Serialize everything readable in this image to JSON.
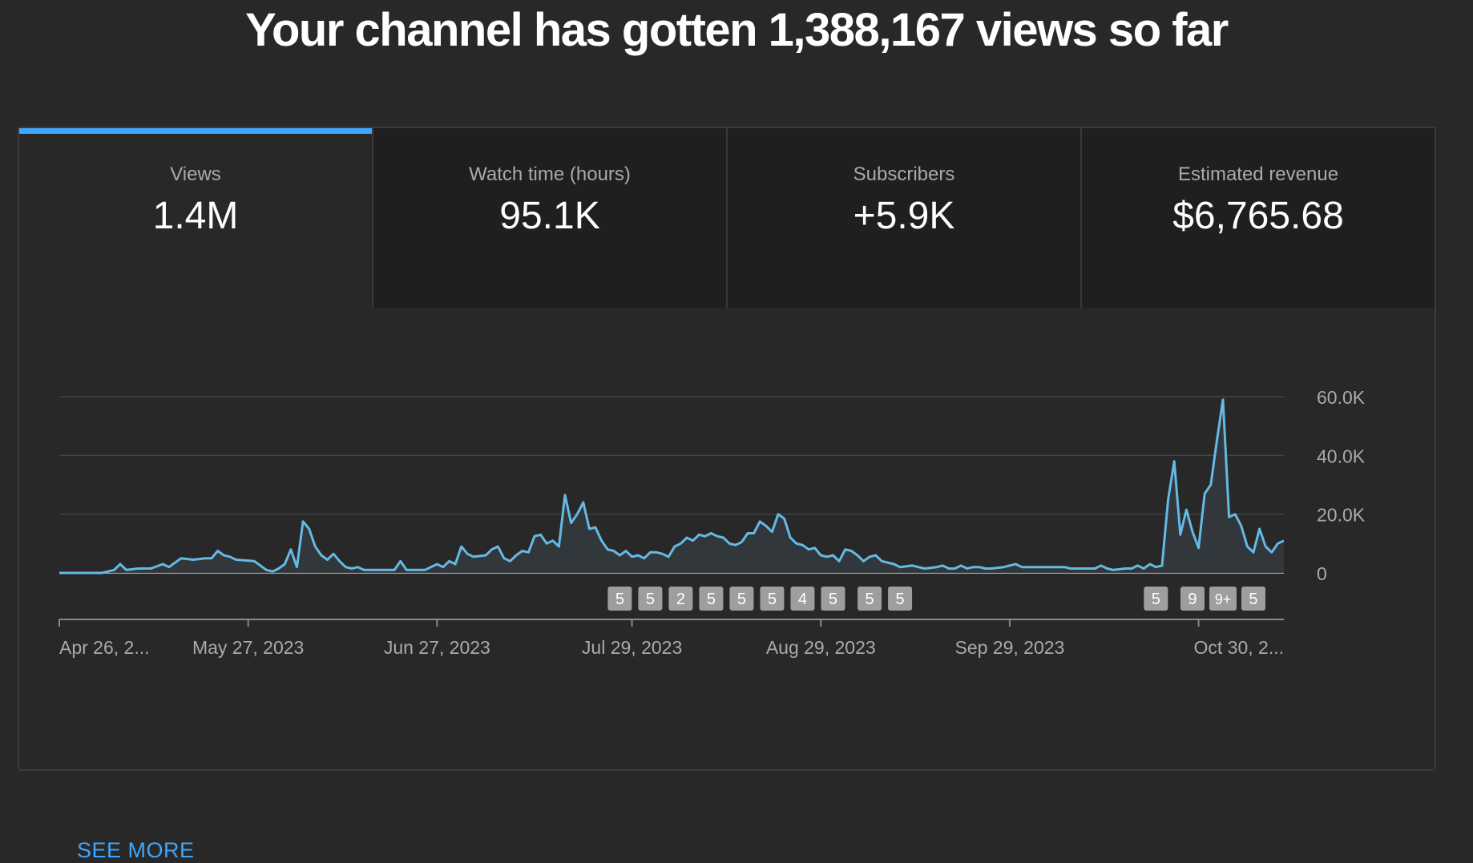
{
  "headline": "Your channel has gotten 1,388,167 views so far",
  "tabs": [
    {
      "label": "Views",
      "value": "1.4M",
      "active": true
    },
    {
      "label": "Watch time (hours)",
      "value": "95.1K",
      "active": false
    },
    {
      "label": "Subscribers",
      "value": "+5.9K",
      "active": false
    },
    {
      "label": "Estimated revenue",
      "value": "$6,765.68",
      "active": false
    }
  ],
  "see_more_label": "SEE MORE",
  "colors": {
    "accent": "#3ea6ff",
    "line": "#65b9e5",
    "background": "#282828",
    "inactive_tab": "#1f1f1f",
    "badge": "#9e9e9e"
  },
  "chart_data": {
    "type": "area",
    "title": "",
    "xlabel": "",
    "ylabel": "",
    "ylim": [
      0,
      60000
    ],
    "y_ticks": [
      0,
      20000,
      40000,
      60000
    ],
    "y_tick_labels": [
      "0",
      "20.0K",
      "40.0K",
      "60.0K"
    ],
    "y_axis_side": "right",
    "grid": true,
    "x_tick_labels": [
      "Apr 26, 2...",
      "May 27, 2023",
      "Jun 27, 2023",
      "Jul 29, 2023",
      "Aug 29, 2023",
      "Sep 29, 2023",
      "Oct 30, 2..."
    ],
    "x_ticks": [
      "2023-04-26",
      "2023-05-27",
      "2023-06-27",
      "2023-07-29",
      "2023-08-29",
      "2023-09-29",
      "2023-10-30"
    ],
    "series": [
      {
        "values": [
          [
            0,
            0
          ],
          [
            2,
            0
          ],
          [
            5,
            0
          ],
          [
            7,
            0
          ],
          [
            9,
            1000
          ],
          [
            10,
            3000
          ],
          [
            11,
            1000
          ],
          [
            13,
            1500
          ],
          [
            15,
            1500
          ],
          [
            17,
            3000
          ],
          [
            18,
            2000
          ],
          [
            20,
            5000
          ],
          [
            22,
            4500
          ],
          [
            24,
            5000
          ],
          [
            25,
            5000
          ],
          [
            26,
            7500
          ],
          [
            27,
            6000
          ],
          [
            28,
            5500
          ],
          [
            29,
            4500
          ],
          [
            32,
            4000
          ],
          [
            33,
            2500
          ],
          [
            34,
            1000
          ],
          [
            35,
            500
          ],
          [
            36,
            1500
          ],
          [
            37,
            3000
          ],
          [
            38,
            8000
          ],
          [
            39,
            2000
          ],
          [
            40,
            17500
          ],
          [
            41,
            15000
          ],
          [
            42,
            9000
          ],
          [
            43,
            6000
          ],
          [
            44,
            4500
          ],
          [
            45,
            6500
          ],
          [
            46,
            4000
          ],
          [
            47,
            2000
          ],
          [
            48,
            1500
          ],
          [
            49,
            2000
          ],
          [
            50,
            1000
          ],
          [
            55,
            1000
          ],
          [
            56,
            4000
          ],
          [
            57,
            1000
          ],
          [
            60,
            1000
          ],
          [
            61,
            2000
          ],
          [
            62,
            3000
          ],
          [
            63,
            2000
          ],
          [
            64,
            4000
          ],
          [
            65,
            3000
          ],
          [
            66,
            9000
          ],
          [
            67,
            6500
          ],
          [
            68,
            5500
          ],
          [
            70,
            6000
          ],
          [
            71,
            8000
          ],
          [
            72,
            9000
          ],
          [
            73,
            5000
          ],
          [
            74,
            4000
          ],
          [
            75,
            6000
          ],
          [
            76,
            7500
          ],
          [
            77,
            7000
          ],
          [
            78,
            12500
          ],
          [
            79,
            13000
          ],
          [
            80,
            10000
          ],
          [
            81,
            11000
          ],
          [
            82,
            9000
          ],
          [
            83,
            26500
          ],
          [
            84,
            17000
          ],
          [
            85,
            20000
          ],
          [
            86,
            24000
          ],
          [
            87,
            15000
          ],
          [
            88,
            15500
          ],
          [
            89,
            11000
          ],
          [
            90,
            8000
          ],
          [
            91,
            7500
          ],
          [
            92,
            6000
          ],
          [
            93,
            7500
          ],
          [
            94,
            5500
          ],
          [
            95,
            6000
          ],
          [
            96,
            5000
          ],
          [
            97,
            7000
          ],
          [
            98,
            7000
          ],
          [
            99,
            6500
          ],
          [
            100,
            5500
          ],
          [
            101,
            9000
          ],
          [
            102,
            10000
          ],
          [
            103,
            12000
          ],
          [
            104,
            11000
          ],
          [
            105,
            13000
          ],
          [
            106,
            12500
          ],
          [
            107,
            13500
          ],
          [
            108,
            12500
          ],
          [
            109,
            12000
          ],
          [
            110,
            10000
          ],
          [
            111,
            9500
          ],
          [
            112,
            10500
          ],
          [
            113,
            13500
          ],
          [
            114,
            13500
          ],
          [
            115,
            17500
          ],
          [
            116,
            16000
          ],
          [
            117,
            14000
          ],
          [
            118,
            20000
          ],
          [
            119,
            18500
          ],
          [
            120,
            12000
          ],
          [
            121,
            10000
          ],
          [
            122,
            9500
          ],
          [
            123,
            8000
          ],
          [
            124,
            8500
          ],
          [
            125,
            6000
          ],
          [
            126,
            5500
          ],
          [
            127,
            6000
          ],
          [
            128,
            4000
          ],
          [
            129,
            8000
          ],
          [
            130,
            7500
          ],
          [
            131,
            6000
          ],
          [
            132,
            4000
          ],
          [
            133,
            5500
          ],
          [
            134,
            6000
          ],
          [
            135,
            4000
          ],
          [
            137,
            3000
          ],
          [
            138,
            2000
          ],
          [
            140,
            2500
          ],
          [
            142,
            1500
          ],
          [
            144,
            2000
          ],
          [
            145,
            2500
          ],
          [
            146,
            1500
          ],
          [
            147,
            1500
          ],
          [
            148,
            2500
          ],
          [
            149,
            1500
          ],
          [
            150,
            2000
          ],
          [
            151,
            2000
          ],
          [
            152,
            1500
          ],
          [
            153,
            1500
          ],
          [
            155,
            2000
          ],
          [
            156,
            2500
          ],
          [
            157,
            3000
          ],
          [
            158,
            2000
          ],
          [
            165,
            2000
          ],
          [
            166,
            1500
          ],
          [
            170,
            1500
          ],
          [
            171,
            2500
          ],
          [
            172,
            1500
          ],
          [
            173,
            1000
          ],
          [
            175,
            1500
          ],
          [
            176,
            1500
          ],
          [
            177,
            2500
          ],
          [
            178,
            1500
          ],
          [
            179,
            3000
          ],
          [
            180,
            2000
          ],
          [
            181,
            2500
          ],
          [
            182,
            25000
          ],
          [
            183,
            38000
          ],
          [
            184,
            13000
          ],
          [
            185,
            21500
          ],
          [
            186,
            14000
          ],
          [
            187,
            8500
          ],
          [
            188,
            27000
          ],
          [
            189,
            30000
          ],
          [
            190,
            45000
          ],
          [
            191,
            59000
          ],
          [
            192,
            19000
          ],
          [
            193,
            20000
          ],
          [
            194,
            16000
          ],
          [
            195,
            9000
          ],
          [
            196,
            7000
          ],
          [
            197,
            15000
          ],
          [
            198,
            9000
          ],
          [
            199,
            7000
          ],
          [
            200,
            10000
          ],
          [
            201,
            11000
          ]
        ]
      }
    ],
    "annotations": [
      {
        "day": 92,
        "label": "5"
      },
      {
        "day": 97,
        "label": "5"
      },
      {
        "day": 102,
        "label": "2"
      },
      {
        "day": 107,
        "label": "5"
      },
      {
        "day": 112,
        "label": "5"
      },
      {
        "day": 117,
        "label": "5"
      },
      {
        "day": 122,
        "label": "4"
      },
      {
        "day": 127,
        "label": "5"
      },
      {
        "day": 133,
        "label": "5"
      },
      {
        "day": 138,
        "label": "5"
      },
      {
        "day": 180,
        "label": "5"
      },
      {
        "day": 186,
        "label": "9"
      },
      {
        "day": 191,
        "label": "9+"
      },
      {
        "day": 196,
        "label": "5"
      }
    ]
  }
}
